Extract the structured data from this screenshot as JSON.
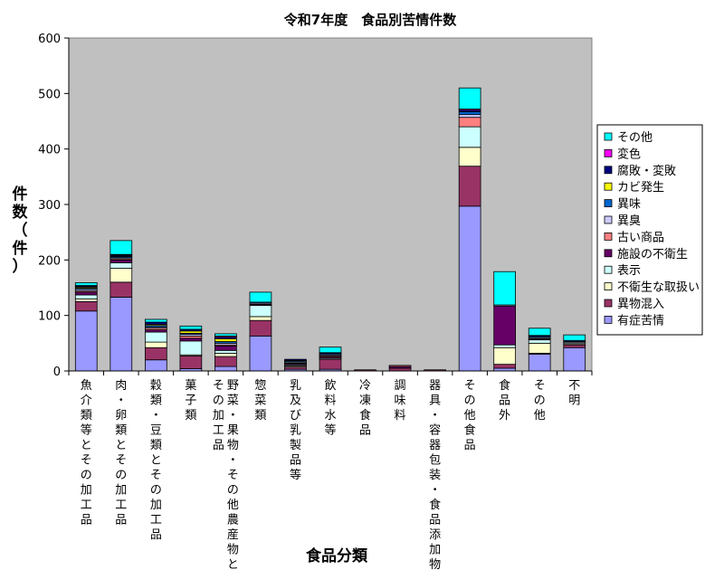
{
  "chart_data": {
    "type": "bar",
    "stacked": true,
    "title": "令和7年度　食品別苦情件数",
    "xlabel": "食品分類",
    "ylabel_chars": [
      "件",
      "数",
      "（",
      "件",
      "）"
    ],
    "ylim": [
      0,
      600
    ],
    "yticks": [
      0,
      100,
      200,
      300,
      400,
      500,
      600
    ],
    "grid": false,
    "legend_position": "right",
    "categories": [
      [
        "魚介類等とその加工品"
      ],
      [
        "肉・卵類とその加工品"
      ],
      [
        "穀類・豆類とその加工品"
      ],
      [
        "菓子類"
      ],
      [
        "野菜・果物・その他農産物と",
        "その加工品"
      ],
      [
        "惣菜類"
      ],
      [
        "乳及び乳製品等"
      ],
      [
        "飲料水等"
      ],
      [
        "冷凍食品"
      ],
      [
        "調味料"
      ],
      [
        "器具・容器包装・食品添加物"
      ],
      [
        "その他食品"
      ],
      [
        "食品外"
      ],
      [
        "その他"
      ],
      [
        "不明"
      ]
    ],
    "series": [
      {
        "name": "有症苦情",
        "color": "#9999ff",
        "values": [
          108,
          133,
          20,
          4,
          8,
          63,
          3,
          3,
          0,
          0,
          0,
          297,
          5,
          30,
          42
        ]
      },
      {
        "name": "異物混入",
        "color": "#993366",
        "values": [
          17,
          27,
          22,
          23,
          18,
          28,
          4,
          18,
          2,
          5,
          2,
          72,
          7,
          2,
          5
        ]
      },
      {
        "name": "不衛生な取扱い",
        "color": "#ffffcc",
        "values": [
          5,
          25,
          10,
          2,
          6,
          7,
          2,
          0,
          0,
          0,
          0,
          34,
          30,
          18,
          2
        ]
      },
      {
        "name": "表示",
        "color": "#ccffff",
        "values": [
          7,
          10,
          18,
          25,
          5,
          20,
          2,
          2,
          0,
          0,
          0,
          37,
          5,
          6,
          2
        ]
      },
      {
        "name": "施設の不衛生",
        "color": "#660066",
        "values": [
          5,
          5,
          4,
          5,
          8,
          2,
          2,
          2,
          0,
          3,
          0,
          0,
          70,
          2,
          0
        ]
      },
      {
        "name": "古い商品",
        "color": "#ff8080",
        "values": [
          2,
          2,
          3,
          4,
          2,
          0,
          1,
          2,
          0,
          2,
          0,
          17,
          0,
          0,
          0
        ]
      },
      {
        "name": "異臭",
        "color": "#ccccff",
        "values": [
          3,
          2,
          2,
          3,
          3,
          2,
          2,
          2,
          0,
          0,
          0,
          5,
          2,
          2,
          2
        ]
      },
      {
        "name": "異味",
        "color": "#0066cc",
        "values": [
          2,
          2,
          3,
          2,
          3,
          2,
          2,
          2,
          0,
          0,
          0,
          5,
          0,
          2,
          2
        ]
      },
      {
        "name": "カビ発生",
        "color": "#ffff00",
        "values": [
          2,
          1,
          2,
          4,
          5,
          0,
          1,
          0,
          0,
          0,
          0,
          0,
          0,
          0,
          0
        ]
      },
      {
        "name": "腐敗・変敗",
        "color": "#000080",
        "values": [
          2,
          2,
          4,
          3,
          3,
          0,
          2,
          2,
          0,
          0,
          0,
          3,
          0,
          2,
          0
        ]
      },
      {
        "name": "変色",
        "color": "#ff00ff",
        "values": [
          1,
          1,
          0,
          0,
          2,
          0,
          0,
          0,
          0,
          0,
          0,
          2,
          0,
          0,
          0
        ]
      },
      {
        "name": "その他",
        "color": "#00ffff",
        "values": [
          5,
          25,
          5,
          6,
          4,
          18,
          0,
          10,
          0,
          0,
          0,
          38,
          60,
          13,
          10
        ]
      }
    ]
  }
}
